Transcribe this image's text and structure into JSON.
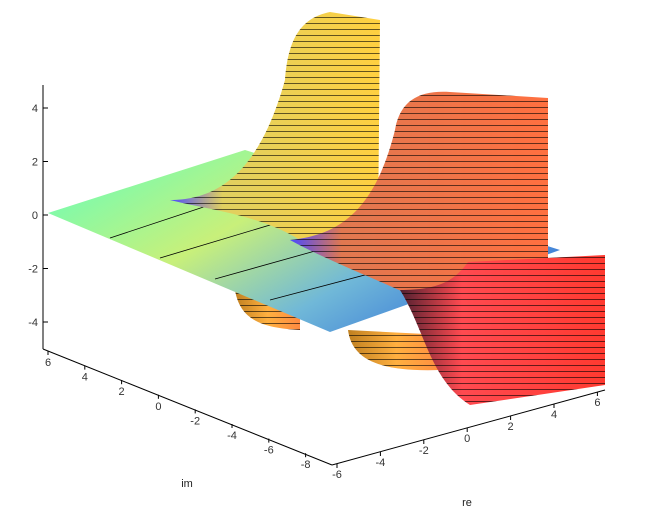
{
  "chart_data": {
    "type": "surface3d",
    "title": "",
    "axes": {
      "x": {
        "label": "re",
        "ticks": [
          "-6",
          "-4",
          "-2",
          "0",
          "2",
          "4",
          "6"
        ],
        "range": [
          -6,
          6
        ]
      },
      "y": {
        "label": "im",
        "ticks": [
          "6",
          "4",
          "2",
          "0",
          "-2",
          "-4",
          "-6",
          "-8"
        ],
        "range": [
          -8,
          6
        ]
      },
      "z": {
        "label": "",
        "ticks": [
          "4",
          "2",
          "0",
          "-2",
          "-4"
        ],
        "range": [
          -5,
          5
        ]
      }
    },
    "style": "patch and contour",
    "colors": {
      "low": "#3fa0e0",
      "mid": "#5fffc0",
      "high": "#ffe040",
      "peak": "#ff3030",
      "wall_side": "#4040ff"
    }
  }
}
